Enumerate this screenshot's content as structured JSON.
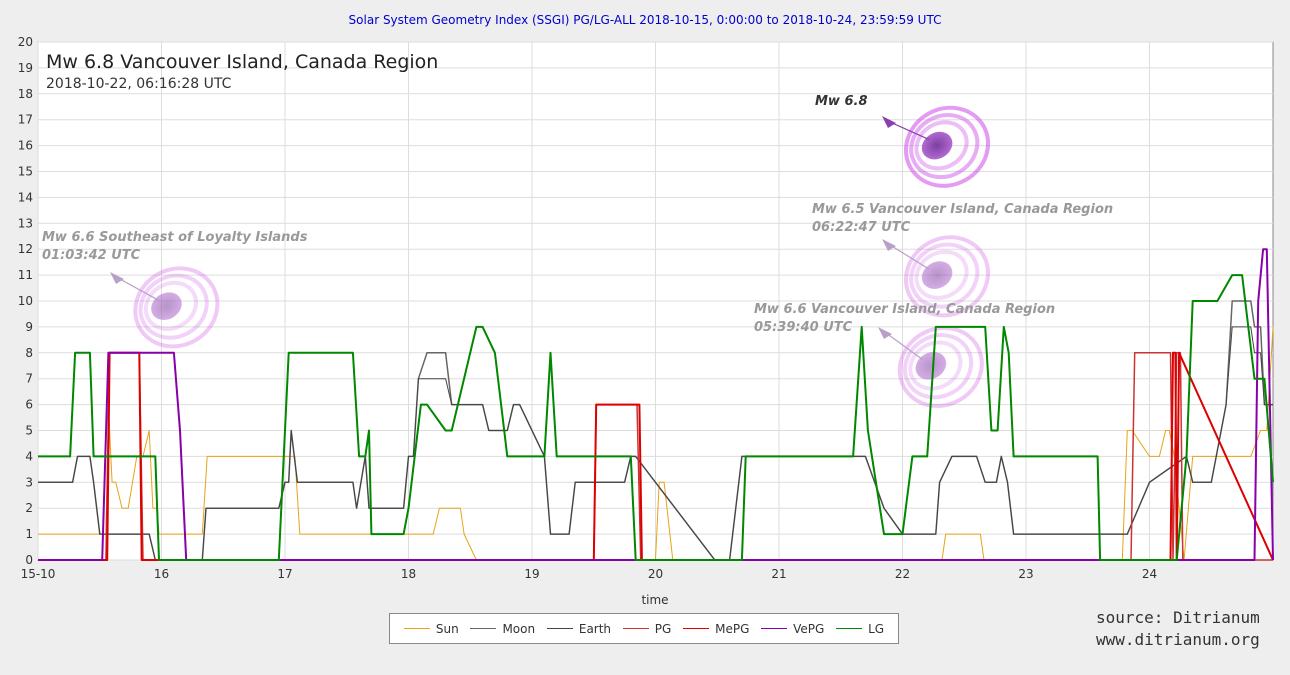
{
  "chart_title": "Solar System Geometry Index (SSGI) PG/LG-ALL 2018-10-15,  0:00:00 to 2018-10-24, 23:59:59 UTC",
  "event": {
    "title": "Mw 6.8 Vancouver Island, Canada Region",
    "subtitle": "2018-10-22, 06:16:28 UTC"
  },
  "annotations": [
    {
      "id": "a-mw68",
      "line1": "Mw 6.8",
      "line2": "",
      "color": "#333333",
      "at_x": 22.28,
      "at_y": 16.0
    },
    {
      "id": "a-mw65",
      "line1": "Mw 6.5 Vancouver Island, Canada Region",
      "line2": "06:22:47 UTC",
      "color": "#999999",
      "at_x": 22.28,
      "at_y": 11.0
    },
    {
      "id": "a-mw66v",
      "line1": "Mw 6.6 Vancouver Island, Canada Region",
      "line2": "05:39:40 UTC",
      "color": "#999999",
      "at_x": 22.23,
      "at_y": 7.5
    },
    {
      "id": "a-mw66l",
      "line1": "Mw 6.6 Southeast of Loyalty Islands",
      "line2": "01:03:42 UTC",
      "color": "#999999",
      "at_x": 16.04,
      "at_y": 9.8
    }
  ],
  "source": {
    "line1": "source: Ditrianum",
    "line2": "www.ditrianum.org"
  },
  "chart_data": {
    "type": "line",
    "title": "Solar System Geometry Index (SSGI) PG/LG-ALL 2018-10-15,  0:00:00 to 2018-10-24, 23:59:59 UTC",
    "xlabel": "time",
    "ylabel": "",
    "xlim": [
      15.0,
      25.0
    ],
    "ylim": [
      0,
      20
    ],
    "x_ticks": [
      {
        "v": 15.0,
        "label": "15-10"
      },
      {
        "v": 16.0,
        "label": "16"
      },
      {
        "v": 17.0,
        "label": "17"
      },
      {
        "v": 18.0,
        "label": "18"
      },
      {
        "v": 19.0,
        "label": "19"
      },
      {
        "v": 20.0,
        "label": "20"
      },
      {
        "v": 21.0,
        "label": "21"
      },
      {
        "v": 22.0,
        "label": "22"
      },
      {
        "v": 23.0,
        "label": "23"
      },
      {
        "v": 24.0,
        "label": "24"
      }
    ],
    "y_ticks": [
      0,
      1,
      2,
      3,
      4,
      5,
      6,
      7,
      8,
      9,
      10,
      11,
      12,
      13,
      14,
      15,
      16,
      17,
      18,
      19,
      20
    ],
    "grid": true,
    "legend_position": "bottom",
    "series": [
      {
        "name": "Sun",
        "color": "#e8a317",
        "width": 1,
        "x": [
          15.0,
          15.55,
          15.57,
          15.6,
          15.63,
          15.68,
          15.73,
          15.8,
          15.85,
          15.9,
          15.93,
          15.96,
          15.98,
          16.05,
          16.33,
          16.37,
          16.95,
          17.08,
          17.12,
          17.33,
          18.2,
          18.25,
          18.42,
          18.45,
          18.55,
          19.0,
          20.0,
          20.03,
          20.07,
          20.14,
          20.17,
          21.0,
          21.35,
          21.38,
          22.0,
          22.32,
          22.35,
          22.63,
          22.66,
          23.6,
          23.78,
          23.82,
          23.86,
          24.0,
          24.08,
          24.13,
          24.16,
          24.2,
          24.28,
          24.35,
          24.48,
          24.82,
          24.9,
          24.95,
          25.0
        ],
        "y": [
          1,
          1,
          6,
          3,
          3,
          2,
          2,
          4,
          4,
          5,
          2,
          2,
          1,
          1,
          1,
          4,
          4,
          4,
          1,
          1,
          1,
          2,
          2,
          1,
          0,
          0,
          0,
          3,
          3,
          0,
          0,
          0,
          0,
          0,
          0,
          0,
          1,
          1,
          0,
          0,
          0,
          5,
          5,
          4,
          4,
          5,
          5,
          4,
          0,
          4,
          4,
          4,
          5,
          5,
          9
        ]
      },
      {
        "name": "Moon",
        "color": "#666666",
        "width": 1.5,
        "x": [
          15.0,
          15.28,
          15.32,
          15.42,
          15.45,
          15.5,
          15.55,
          15.9,
          15.95,
          16.0,
          16.2,
          16.33,
          16.36,
          16.95,
          17.0,
          17.03,
          17.05,
          17.1,
          17.12,
          17.55,
          17.58,
          17.65,
          17.68,
          17.96,
          18.0,
          18.04,
          18.08,
          18.15,
          18.3,
          18.35,
          18.6,
          18.65,
          18.8,
          18.85,
          18.9,
          19.1,
          19.15,
          19.2,
          19.3,
          19.35,
          19.45,
          19.75,
          19.8,
          19.84,
          20.48,
          20.6,
          20.7,
          20.75,
          20.8,
          21.6,
          21.67,
          21.7,
          21.85,
          22.0,
          22.15,
          22.22,
          22.27,
          22.3,
          22.4,
          22.55,
          22.6,
          22.67,
          22.76,
          22.8,
          22.85,
          22.9,
          23.0,
          23.05,
          23.1,
          23.38,
          23.4,
          23.5,
          23.56,
          23.6,
          23.7,
          23.72,
          23.76,
          23.82,
          24.0,
          24.3,
          24.35,
          24.5,
          24.62,
          24.67,
          24.75,
          24.82,
          24.85,
          24.9,
          24.93,
          25.0
        ],
        "y": [
          3,
          3,
          4,
          4,
          3,
          1,
          1,
          1,
          0,
          0,
          0,
          0,
          2,
          2,
          3,
          3,
          5,
          3,
          3,
          3,
          2,
          4,
          2,
          2,
          4,
          4,
          7,
          8,
          8,
          6,
          6,
          5,
          5,
          6,
          6,
          4,
          1,
          1,
          1,
          3,
          3,
          3,
          4,
          4,
          0,
          0,
          4,
          4,
          4,
          4,
          4,
          4,
          2,
          1,
          1,
          1,
          1,
          3,
          4,
          4,
          4,
          3,
          3,
          4,
          3,
          1,
          1,
          1,
          1,
          1,
          1,
          1,
          1,
          1,
          1,
          1,
          1,
          1,
          3,
          4,
          3,
          3,
          6,
          10,
          10,
          10,
          9,
          9,
          6,
          6
        ]
      },
      {
        "name": "Earth",
        "color": "#444444",
        "width": 1,
        "x": [
          15.0,
          15.28,
          15.32,
          15.42,
          15.45,
          15.5,
          15.55,
          15.9,
          15.95,
          16.0,
          16.2,
          16.33,
          16.36,
          16.95,
          17.0,
          17.03,
          17.05,
          17.1,
          17.12,
          17.55,
          17.58,
          17.65,
          17.68,
          17.96,
          18.0,
          18.04,
          18.08,
          18.15,
          18.3,
          18.35,
          18.6,
          18.65,
          18.8,
          18.85,
          18.9,
          19.1,
          19.15,
          19.2,
          19.3,
          19.35,
          19.45,
          19.75,
          19.8,
          19.84,
          20.48,
          20.6,
          20.7,
          20.75,
          20.8,
          21.6,
          21.67,
          21.7,
          21.85,
          22.0,
          22.15,
          22.22,
          22.27,
          22.3,
          22.4,
          22.55,
          22.6,
          22.67,
          22.76,
          22.8,
          22.85,
          22.9,
          23.0,
          23.05,
          23.1,
          23.38,
          23.4,
          23.5,
          23.56,
          23.6,
          23.7,
          23.72,
          23.76,
          23.82,
          24.0,
          24.3,
          24.35,
          24.5,
          24.62,
          24.67,
          24.75,
          24.82,
          24.85,
          24.9,
          24.93,
          25.0
        ],
        "y": [
          3,
          3,
          4,
          4,
          3,
          1,
          1,
          1,
          0,
          0,
          0,
          0,
          2,
          2,
          3,
          3,
          5,
          3,
          3,
          3,
          2,
          4,
          2,
          2,
          4,
          4,
          7,
          7,
          7,
          6,
          6,
          5,
          5,
          6,
          6,
          4,
          1,
          1,
          1,
          3,
          3,
          3,
          4,
          4,
          0,
          0,
          4,
          4,
          4,
          4,
          4,
          4,
          2,
          1,
          1,
          1,
          1,
          3,
          4,
          4,
          4,
          3,
          3,
          4,
          3,
          1,
          1,
          1,
          1,
          1,
          1,
          1,
          1,
          1,
          1,
          1,
          1,
          1,
          3,
          4,
          3,
          3,
          6,
          9,
          9,
          9,
          8,
          8,
          6,
          6
        ]
      },
      {
        "name": "PG",
        "color": "#cc3333",
        "width": 1.5,
        "x": [
          15.0,
          15.55,
          15.58,
          15.82,
          15.85,
          16.05,
          16.07,
          19.5,
          19.52,
          19.55,
          19.85,
          19.88,
          23.85,
          23.88,
          24.17,
          24.19,
          24.22,
          24.25,
          24.27,
          24.3,
          25.0
        ],
        "y": [
          0,
          0,
          8,
          8,
          0,
          0,
          0,
          0,
          6,
          6,
          6,
          0,
          0,
          8,
          8,
          0,
          8,
          8,
          0,
          0,
          0
        ]
      },
      {
        "name": "MePG",
        "color": "#dd0000",
        "width": 2,
        "x": [
          15.0,
          15.56,
          15.58,
          15.82,
          15.84,
          19.5,
          19.52,
          19.55,
          19.87,
          19.89,
          24.17,
          24.19,
          24.21,
          24.22,
          24.24,
          25.0
        ],
        "y": [
          0,
          0,
          8,
          8,
          0,
          0,
          6,
          6,
          6,
          0,
          0,
          8,
          8,
          0,
          8,
          0
        ]
      },
      {
        "name": "VePG",
        "color": "#8800aa",
        "width": 2,
        "x": [
          15.0,
          15.52,
          15.57,
          15.6,
          16.1,
          16.15,
          16.2,
          24.85,
          24.88,
          24.92,
          24.95,
          25.0
        ],
        "y": [
          0,
          0,
          8,
          8,
          8,
          5,
          0,
          0,
          10,
          12,
          12,
          0
        ]
      },
      {
        "name": "LG",
        "color": "#008800",
        "width": 2,
        "x": [
          15.0,
          15.26,
          15.3,
          15.42,
          15.45,
          15.52,
          15.55,
          15.95,
          15.98,
          16.02,
          16.95,
          17.03,
          17.55,
          17.6,
          17.65,
          17.68,
          17.7,
          17.96,
          18.0,
          18.1,
          18.15,
          18.3,
          18.35,
          18.55,
          18.6,
          18.7,
          18.8,
          18.85,
          19.1,
          19.15,
          19.2,
          19.3,
          19.35,
          19.75,
          19.8,
          19.84,
          20.48,
          20.6,
          20.7,
          20.73,
          21.6,
          21.67,
          21.72,
          21.85,
          21.9,
          22.0,
          22.08,
          22.2,
          22.27,
          22.33,
          22.37,
          22.67,
          22.72,
          22.77,
          22.82,
          22.86,
          22.9,
          23.1,
          23.38,
          23.4,
          23.5,
          23.58,
          23.6,
          23.75,
          23.82,
          24.22,
          24.3,
          24.35,
          24.5,
          24.55,
          24.67,
          24.75,
          24.85,
          24.93,
          25.0
        ],
        "y": [
          4,
          4,
          8,
          8,
          4,
          4,
          4,
          4,
          0,
          0,
          0,
          8,
          8,
          4,
          4,
          5,
          1,
          1,
          2,
          6,
          6,
          5,
          5,
          9,
          9,
          8,
          4,
          4,
          4,
          8,
          4,
          4,
          4,
          4,
          4,
          0,
          0,
          0,
          0,
          4,
          4,
          9,
          5,
          1,
          1,
          1,
          4,
          4,
          9,
          9,
          9,
          9,
          5,
          5,
          9,
          8,
          4,
          4,
          4,
          4,
          4,
          4,
          0,
          0,
          0,
          0,
          4,
          10,
          10,
          10,
          11,
          11,
          7,
          7,
          3
        ]
      }
    ]
  }
}
